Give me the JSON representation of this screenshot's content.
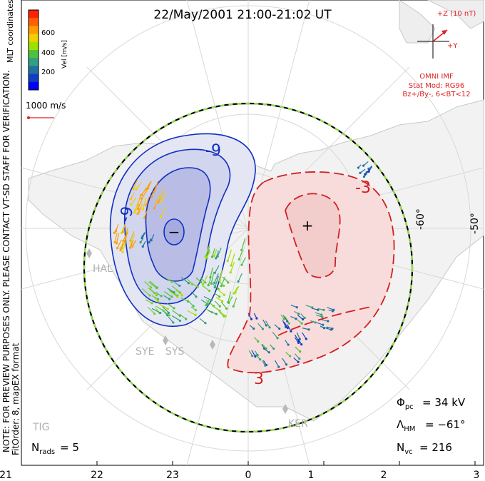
{
  "title": "22/May/2001 21:00-21:02 UT",
  "colorbar": {
    "label": "Vel [m/s]",
    "ticks": [
      "600",
      "400",
      "200"
    ],
    "colors": [
      "#ff2000",
      "#ff6000",
      "#ff9a00",
      "#f0d000",
      "#a0e000",
      "#50c040",
      "#30a080",
      "#2070a0",
      "#1040c0",
      "#0000ff"
    ]
  },
  "coord_system": "MLT coordinates",
  "reference_vector": "1000 m/s",
  "imf": {
    "label_z": "+Z (10 nT)",
    "label_y": "+Y",
    "source": "OMNI IMF",
    "model": "Stat Mod: RG96",
    "condition": "Bz+/By-, 6<BT<12"
  },
  "lat_labels": [
    "-60°",
    "-50°"
  ],
  "contour_labels": {
    "neg1": "-9",
    "neg2": "-9",
    "pos1": "-3",
    "pos2": "3"
  },
  "extrema": {
    "min": "−",
    "max": "+"
  },
  "stations": [
    "HAL",
    "SYE",
    "SYS",
    "KER",
    "TIG"
  ],
  "left_note": "NOTE: FOR PREVIEW PURPOSES ONLY. PLEASE CONTACT VT-SD STAFF FOR VERIFICATION.",
  "fit_order": "FitOrder: 8, mapEX format",
  "stats": {
    "phi_pc": "= 34 kV",
    "lambda_hm": "= −61°",
    "n_vc": "= 216",
    "n_rads": "= 5"
  },
  "mlt_axis": [
    "21",
    "22",
    "23",
    "0",
    "1",
    "2",
    "3"
  ],
  "colors": {
    "negative": "#1030c0",
    "positive": "#d02020",
    "boundary_green": "#90e040"
  }
}
